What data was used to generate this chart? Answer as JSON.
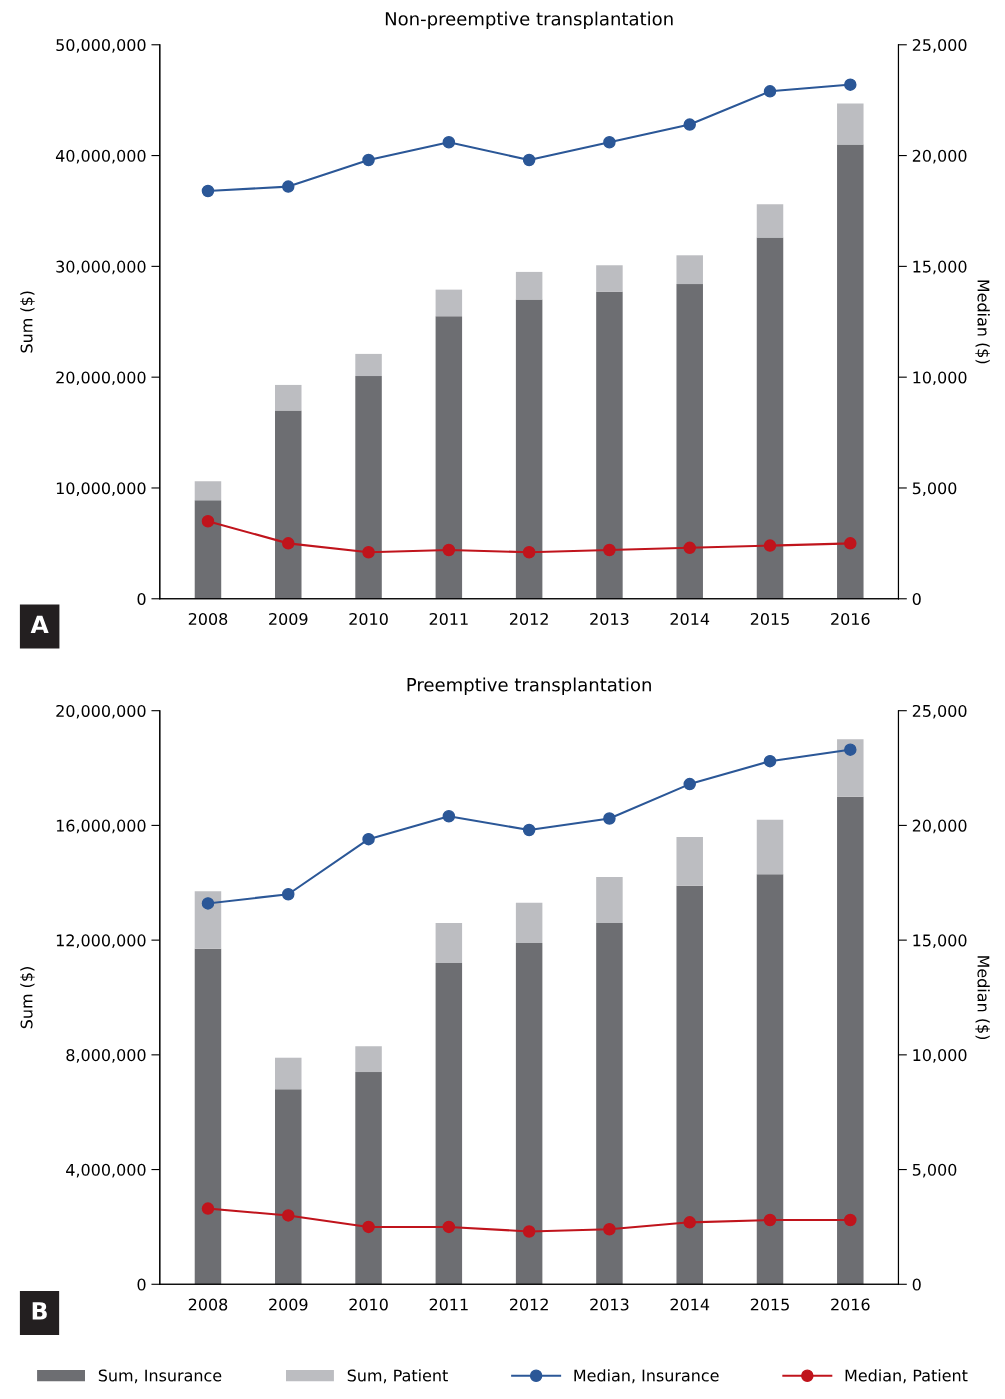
{
  "chart_data": [
    {
      "type": "bar",
      "title": "Non-preemptive transplantation",
      "ylabel": "Sum ($)",
      "y2label": "Median ($)",
      "stacked": true,
      "legend": "bottom",
      "marker": "circle",
      "grid": false,
      "categories": [
        "2008",
        "2009",
        "2010",
        "2011",
        "2012",
        "2013",
        "2014",
        "2015",
        "2016"
      ],
      "ylim": [
        0,
        50000000
      ],
      "yticks": [
        {
          "value": 0,
          "label": "0"
        },
        {
          "value": 10000000,
          "label": "10,000,000"
        },
        {
          "value": 20000000,
          "label": "20,000,000"
        },
        {
          "value": 30000000,
          "label": "30,000,000"
        },
        {
          "value": 40000000,
          "label": "40,000,000"
        },
        {
          "value": 50000000,
          "label": "50,000,000"
        }
      ],
      "y2lim": [
        0,
        25000
      ],
      "y2ticks": [
        {
          "value": 0,
          "label": "0"
        },
        {
          "value": 5000,
          "label": "5,000"
        },
        {
          "value": 10000,
          "label": "10,000"
        },
        {
          "value": 15000,
          "label": "15,000"
        },
        {
          "value": 20000,
          "label": "20,000"
        },
        {
          "value": 25000,
          "label": "25,000"
        }
      ],
      "annotations": [
        "A"
      ],
      "series": [
        {
          "name": "Sum, Insurance",
          "color": "#6d6e72",
          "values": [
            8900000,
            17000000,
            20100000,
            25500000,
            27000000,
            27700000,
            28400000,
            32600000,
            41000000
          ]
        },
        {
          "name": "Sum, Patient",
          "color": "#bcbdc1",
          "values": [
            1700000,
            2300000,
            2000000,
            2400000,
            2500000,
            2400000,
            2600000,
            3000000,
            3700000
          ]
        },
        {
          "name": "Median, Insurance",
          "type": "line",
          "axis": "y2",
          "color": "#2b5797",
          "values": [
            18400,
            18600,
            19800,
            20600,
            19800,
            20600,
            21400,
            22900,
            23200
          ]
        },
        {
          "name": "Median, Patient",
          "type": "line",
          "axis": "y2",
          "color": "#c0141c",
          "values": [
            3500,
            2500,
            2100,
            2200,
            2100,
            2200,
            2300,
            2400,
            2500
          ]
        }
      ]
    },
    {
      "type": "bar",
      "title": "Preemptive transplantation",
      "ylabel": "Sum ($)",
      "y2label": "Median ($)",
      "stacked": true,
      "legend": "bottom",
      "marker": "circle",
      "grid": false,
      "categories": [
        "2008",
        "2009",
        "2010",
        "2011",
        "2012",
        "2013",
        "2014",
        "2015",
        "2016"
      ],
      "ylim": [
        0,
        20000000
      ],
      "yticks": [
        {
          "value": 0,
          "label": "0"
        },
        {
          "value": 4000000,
          "label": "4,000,000"
        },
        {
          "value": 8000000,
          "label": "8,000,000"
        },
        {
          "value": 12000000,
          "label": "12,000,000"
        },
        {
          "value": 16000000,
          "label": "16,000,000"
        },
        {
          "value": 20000000,
          "label": "20,000,000"
        }
      ],
      "y2lim": [
        0,
        25000
      ],
      "y2ticks": [
        {
          "value": 0,
          "label": "0"
        },
        {
          "value": 5000,
          "label": "5,000"
        },
        {
          "value": 10000,
          "label": "10,000"
        },
        {
          "value": 15000,
          "label": "15,000"
        },
        {
          "value": 20000,
          "label": "20,000"
        },
        {
          "value": 25000,
          "label": "25,000"
        }
      ],
      "annotations": [
        "B"
      ],
      "series": [
        {
          "name": "Sum, Insurance",
          "color": "#6d6e72",
          "values": [
            11700000,
            6800000,
            7400000,
            11200000,
            11900000,
            12600000,
            13900000,
            14300000,
            17000000
          ]
        },
        {
          "name": "Sum, Patient",
          "color": "#bcbdc1",
          "values": [
            2000000,
            1100000,
            900000,
            1400000,
            1400000,
            1600000,
            1700000,
            1900000,
            2000000
          ]
        },
        {
          "name": "Median, Insurance",
          "type": "line",
          "axis": "y2",
          "color": "#2b5797",
          "values": [
            16600,
            17000,
            19400,
            20400,
            19800,
            20300,
            21800,
            22800,
            23300
          ]
        },
        {
          "name": "Median, Patient",
          "type": "line",
          "axis": "y2",
          "color": "#c0141c",
          "values": [
            3300,
            3000,
            2500,
            2500,
            2300,
            2400,
            2700,
            2800,
            2800
          ]
        }
      ]
    }
  ]
}
